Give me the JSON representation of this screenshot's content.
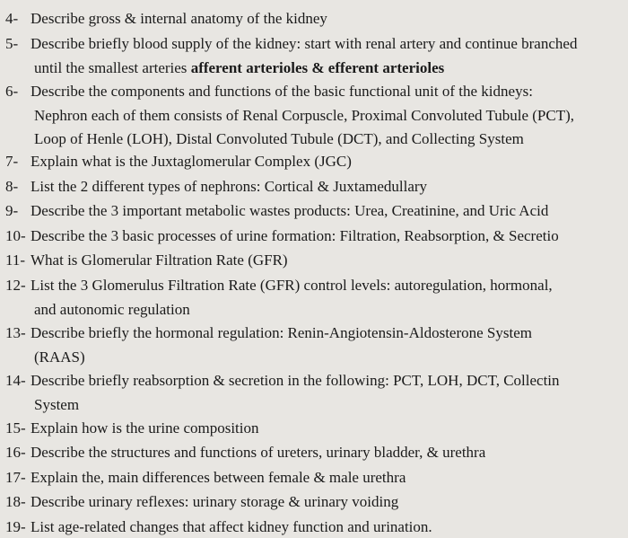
{
  "items": [
    {
      "num": "4-",
      "lines": [
        {
          "text": "Describe gross & internal anatomy of the kidney",
          "bold": false
        }
      ]
    },
    {
      "num": "5-",
      "lines": [
        {
          "text": "Describe briefly blood supply of the kidney: start with renal artery and continue branched",
          "bold": false
        },
        {
          "pre": "until the smallest arteries ",
          "boldText": "afferent arterioles & efferent arterioles"
        }
      ]
    },
    {
      "num": "6-",
      "lines": [
        {
          "text": "Describe the components and functions of the basic functional unit of the kidneys:",
          "bold": false
        },
        {
          "text": "Nephron each of them consists of Renal Corpuscle, Proximal Convoluted Tubule (PCT),",
          "bold": false
        },
        {
          "text": "Loop of Henle (LOH), Distal Convoluted Tubule (DCT), and Collecting System",
          "bold": false
        }
      ]
    },
    {
      "num": "7-",
      "lines": [
        {
          "text": "Explain what is the Juxtaglomerular Complex (JGC)",
          "bold": false
        }
      ]
    },
    {
      "num": "8-",
      "lines": [
        {
          "text": "List the 2 different types of nephrons: Cortical & Juxtamedullary",
          "bold": false
        }
      ]
    },
    {
      "num": "9-",
      "lines": [
        {
          "text": "Describe the 3 important metabolic wastes products: Urea, Creatinine, and Uric Acid",
          "bold": false
        }
      ]
    },
    {
      "num": "10-",
      "lines": [
        {
          "text": "Describe the 3 basic processes of urine formation: Filtration, Reabsorption, & Secretio",
          "bold": false
        }
      ]
    },
    {
      "num": "11-",
      "lines": [
        {
          "text": "What is Glomerular Filtration Rate (GFR)",
          "bold": false
        }
      ]
    },
    {
      "num": "12-",
      "lines": [
        {
          "text": "List the 3 Glomerulus Filtration Rate (GFR) control levels: autoregulation, hormonal,",
          "bold": false
        },
        {
          "text": "and autonomic regulation",
          "bold": false
        }
      ]
    },
    {
      "num": "13-",
      "lines": [
        {
          "text": "Describe briefly the hormonal regulation: Renin-Angiotensin-Aldosterone System",
          "bold": false
        },
        {
          "text": "(RAAS)",
          "bold": false
        }
      ]
    },
    {
      "num": "14-",
      "lines": [
        {
          "text": "Describe briefly reabsorption & secretion in the following: PCT, LOH, DCT, Collectin",
          "bold": false
        },
        {
          "text": "System",
          "bold": false
        }
      ]
    },
    {
      "num": "15-",
      "lines": [
        {
          "text": "Explain how is the urine composition",
          "bold": false
        }
      ]
    },
    {
      "num": "16-",
      "lines": [
        {
          "text": "Describe the structures and functions of ureters, urinary bladder, & urethra",
          "bold": false
        }
      ]
    },
    {
      "num": "17-",
      "lines": [
        {
          "text": "Explain the, main differences between female & male urethra",
          "bold": false
        }
      ]
    },
    {
      "num": "18-",
      "lines": [
        {
          "text": "Describe urinary reflexes: urinary storage & urinary voiding",
          "bold": false
        }
      ]
    },
    {
      "num": "19-",
      "lines": [
        {
          "text": "List age-related changes that affect kidney function and urination.",
          "bold": false
        }
      ]
    }
  ]
}
